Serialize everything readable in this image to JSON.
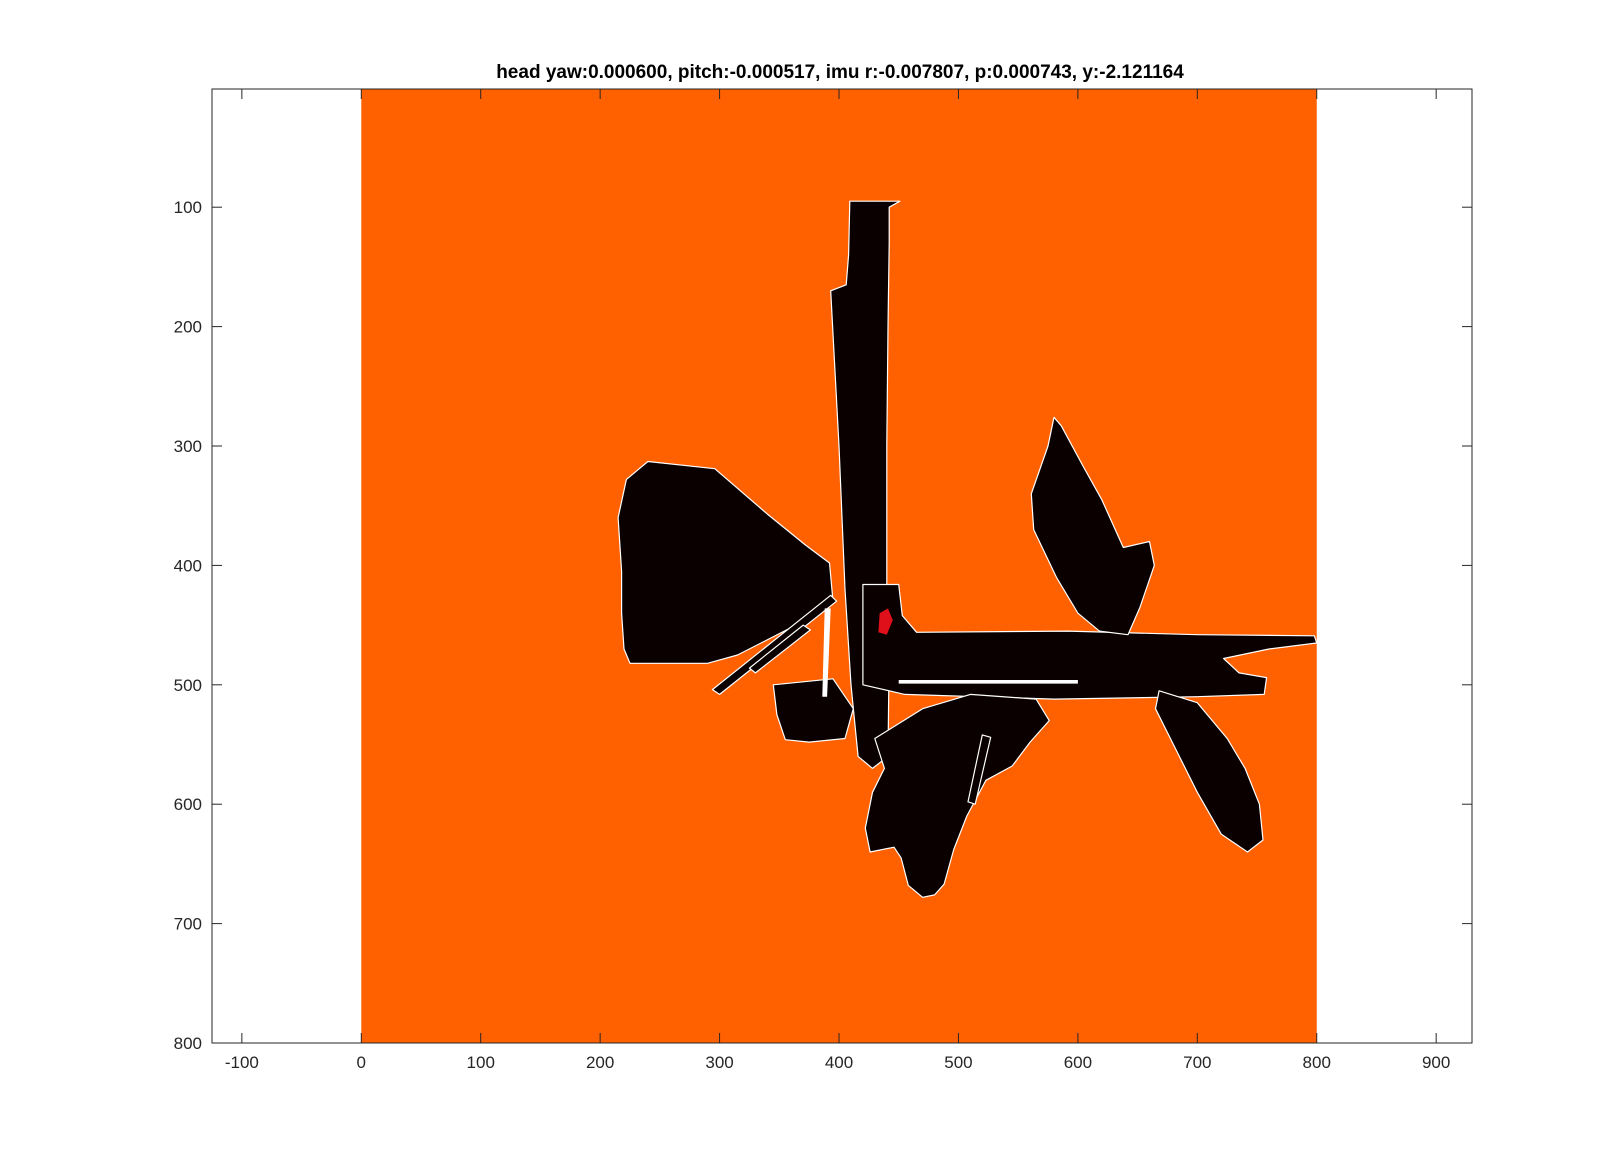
{
  "chart_data": {
    "type": "heatmap",
    "title": "head yaw:0.000600, pitch:-0.000517, imu r:-0.007807, p:0.000743, y:-2.121164",
    "xlabel": "",
    "ylabel": "",
    "xlim": [
      -125,
      930
    ],
    "ylim": [
      1,
      800
    ],
    "y_reversed": true,
    "grid": false,
    "x_ticks": [
      -100,
      0,
      100,
      200,
      300,
      400,
      500,
      600,
      700,
      800,
      900
    ],
    "y_ticks": [
      100,
      200,
      300,
      400,
      500,
      600,
      700,
      800
    ],
    "image_extent": {
      "x": [
        0,
        800
      ],
      "y": [
        1,
        800
      ]
    },
    "colors": {
      "unknown": "#ff6000",
      "free": "#0a0000",
      "edge": "#ffffff",
      "robot": "#e0101a"
    },
    "regions": [
      {
        "name": "corridor-north",
        "color": "free",
        "points": [
          [
            409,
            95
          ],
          [
            451,
            95
          ],
          [
            442,
            100
          ],
          [
            442,
            130
          ],
          [
            441,
            200
          ],
          [
            440,
            300
          ],
          [
            440,
            420
          ],
          [
            442,
            470
          ],
          [
            441,
            560
          ],
          [
            428,
            570
          ],
          [
            416,
            560
          ],
          [
            410,
            500
          ],
          [
            405,
            420
          ],
          [
            400,
            300
          ],
          [
            393,
            170
          ],
          [
            406,
            165
          ],
          [
            408,
            140
          ]
        ]
      },
      {
        "name": "fan-west",
        "color": "free",
        "points": [
          [
            392,
            398
          ],
          [
            372,
            383
          ],
          [
            340,
            357
          ],
          [
            296,
            319
          ],
          [
            240,
            313
          ],
          [
            222,
            328
          ],
          [
            215,
            360
          ],
          [
            218,
            405
          ],
          [
            218,
            440
          ],
          [
            220,
            470
          ],
          [
            225,
            482
          ],
          [
            290,
            482
          ],
          [
            315,
            475
          ],
          [
            368,
            448
          ],
          [
            395,
            430
          ]
        ]
      },
      {
        "name": "corridor-east",
        "color": "free",
        "points": [
          [
            420,
            416
          ],
          [
            450,
            416
          ],
          [
            453,
            442
          ],
          [
            465,
            456
          ],
          [
            592,
            455
          ],
          [
            700,
            458
          ],
          [
            798,
            459
          ],
          [
            800,
            465
          ],
          [
            760,
            470
          ],
          [
            722,
            478
          ],
          [
            735,
            490
          ],
          [
            758,
            494
          ],
          [
            756,
            508
          ],
          [
            700,
            510
          ],
          [
            580,
            512
          ],
          [
            455,
            508
          ],
          [
            420,
            500
          ]
        ]
      },
      {
        "name": "beam-northeast",
        "color": "free",
        "points": [
          [
            580,
            276
          ],
          [
            586,
            283
          ],
          [
            605,
            318
          ],
          [
            620,
            345
          ],
          [
            638,
            385
          ],
          [
            660,
            380
          ],
          [
            664,
            400
          ],
          [
            652,
            435
          ],
          [
            642,
            458
          ],
          [
            618,
            455
          ],
          [
            600,
            440
          ],
          [
            582,
            410
          ],
          [
            563,
            370
          ],
          [
            561,
            340
          ],
          [
            575,
            300
          ]
        ]
      },
      {
        "name": "fan-southeast",
        "color": "free",
        "points": [
          [
            668,
            505
          ],
          [
            700,
            515
          ],
          [
            725,
            545
          ],
          [
            740,
            570
          ],
          [
            752,
            600
          ],
          [
            755,
            630
          ],
          [
            742,
            640
          ],
          [
            720,
            625
          ],
          [
            700,
            590
          ],
          [
            680,
            550
          ],
          [
            665,
            520
          ]
        ]
      },
      {
        "name": "fan-south",
        "color": "free",
        "points": [
          [
            430,
            545
          ],
          [
            470,
            520
          ],
          [
            510,
            508
          ],
          [
            565,
            512
          ],
          [
            576,
            530
          ],
          [
            560,
            548
          ],
          [
            545,
            568
          ],
          [
            523,
            580
          ],
          [
            507,
            610
          ],
          [
            496,
            638
          ],
          [
            488,
            667
          ],
          [
            480,
            676
          ],
          [
            470,
            678
          ],
          [
            458,
            668
          ],
          [
            452,
            645
          ],
          [
            446,
            636
          ],
          [
            426,
            640
          ],
          [
            422,
            620
          ],
          [
            428,
            590
          ],
          [
            438,
            570
          ]
        ]
      },
      {
        "name": "patch-southwest",
        "color": "free",
        "points": [
          [
            345,
            500
          ],
          [
            395,
            495
          ],
          [
            412,
            520
          ],
          [
            405,
            545
          ],
          [
            375,
            548
          ],
          [
            355,
            546
          ],
          [
            348,
            525
          ]
        ]
      },
      {
        "name": "ray-west-1",
        "color": "free",
        "points": [
          [
            393,
            425
          ],
          [
            398,
            430
          ],
          [
            300,
            508
          ],
          [
            294,
            504
          ]
        ]
      },
      {
        "name": "ray-west-2",
        "color": "free",
        "points": [
          [
            370,
            450
          ],
          [
            376,
            454
          ],
          [
            330,
            490
          ],
          [
            325,
            486
          ]
        ]
      },
      {
        "name": "ray-south-1",
        "color": "free",
        "points": [
          [
            520,
            542
          ],
          [
            527,
            544
          ],
          [
            514,
            600
          ],
          [
            508,
            598
          ]
        ]
      },
      {
        "name": "edge-west-strip",
        "color": "edge",
        "points": [
          [
            388,
            436
          ],
          [
            393,
            436
          ],
          [
            390,
            510
          ],
          [
            386,
            510
          ]
        ]
      },
      {
        "name": "edge-corridor-gap",
        "color": "edge",
        "points": [
          [
            450,
            496
          ],
          [
            600,
            496
          ],
          [
            600,
            499
          ],
          [
            450,
            499
          ]
        ]
      },
      {
        "name": "robot-pose",
        "color": "robot",
        "points": [
          [
            434,
            440
          ],
          [
            441,
            436
          ],
          [
            445,
            446
          ],
          [
            440,
            458
          ],
          [
            433,
            456
          ]
        ]
      }
    ]
  }
}
